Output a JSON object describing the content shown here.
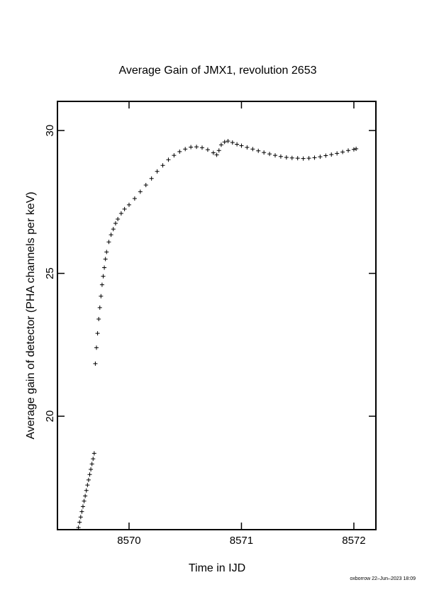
{
  "chart_data": {
    "type": "scatter",
    "title": "Average Gain of JMX1, revolution 2653",
    "x_label": "Time in IJD",
    "y_label": "Average gain of detector (PHA channels per keV)",
    "footer": "oxborrow 22–Jun–2023 18:09",
    "marker": "+",
    "color": "#000000",
    "xlim": [
      8569.363,
      8572.196
    ],
    "xticks": [
      8570,
      8571,
      8572
    ],
    "ylim": [
      16.03,
      31.02
    ],
    "yticks": [
      20,
      25,
      30
    ],
    "x": [
      8569.55,
      8569.56,
      8569.57,
      8569.58,
      8569.59,
      8569.6,
      8569.61,
      8569.62,
      8569.63,
      8569.64,
      8569.65,
      8569.66,
      8569.67,
      8569.68,
      8569.69,
      8569.7,
      8569.71,
      8569.72,
      8569.73,
      8569.74,
      8569.75,
      8569.76,
      8569.77,
      8569.78,
      8569.79,
      8569.8,
      8569.82,
      8569.84,
      8569.86,
      8569.88,
      8569.9,
      8569.93,
      8569.96,
      8570.0,
      8570.05,
      8570.1,
      8570.15,
      8570.2,
      8570.25,
      8570.3,
      8570.35,
      8570.4,
      8570.45,
      8570.5,
      8570.55,
      8570.6,
      8570.65,
      8570.7,
      8570.75,
      8570.78,
      8570.8,
      8570.82,
      8570.85,
      8570.88,
      8570.92,
      8570.96,
      8571.0,
      8571.05,
      8571.1,
      8571.15,
      8571.2,
      8571.25,
      8571.3,
      8571.35,
      8571.4,
      8571.45,
      8571.5,
      8571.55,
      8571.6,
      8571.65,
      8571.7,
      8571.75,
      8571.8,
      8571.85,
      8571.9,
      8571.95,
      8572.0,
      8572.02
    ],
    "values": [
      16.1,
      16.29,
      16.47,
      16.66,
      16.84,
      17.03,
      17.21,
      17.4,
      17.59,
      17.77,
      17.96,
      18.14,
      18.33,
      18.51,
      18.7,
      21.84,
      22.4,
      22.9,
      23.4,
      23.8,
      24.2,
      24.6,
      24.9,
      25.2,
      25.5,
      25.75,
      26.1,
      26.35,
      26.55,
      26.75,
      26.9,
      27.1,
      27.25,
      27.4,
      27.62,
      27.86,
      28.09,
      28.32,
      28.57,
      28.78,
      28.98,
      29.13,
      29.26,
      29.35,
      29.42,
      29.43,
      29.4,
      29.33,
      29.22,
      29.15,
      29.3,
      29.5,
      29.6,
      29.63,
      29.58,
      29.52,
      29.47,
      29.41,
      29.35,
      29.29,
      29.23,
      29.18,
      29.13,
      29.09,
      29.06,
      29.04,
      29.03,
      29.02,
      29.03,
      29.05,
      29.08,
      29.12,
      29.16,
      29.2,
      29.25,
      29.3,
      29.34,
      29.36
    ]
  }
}
